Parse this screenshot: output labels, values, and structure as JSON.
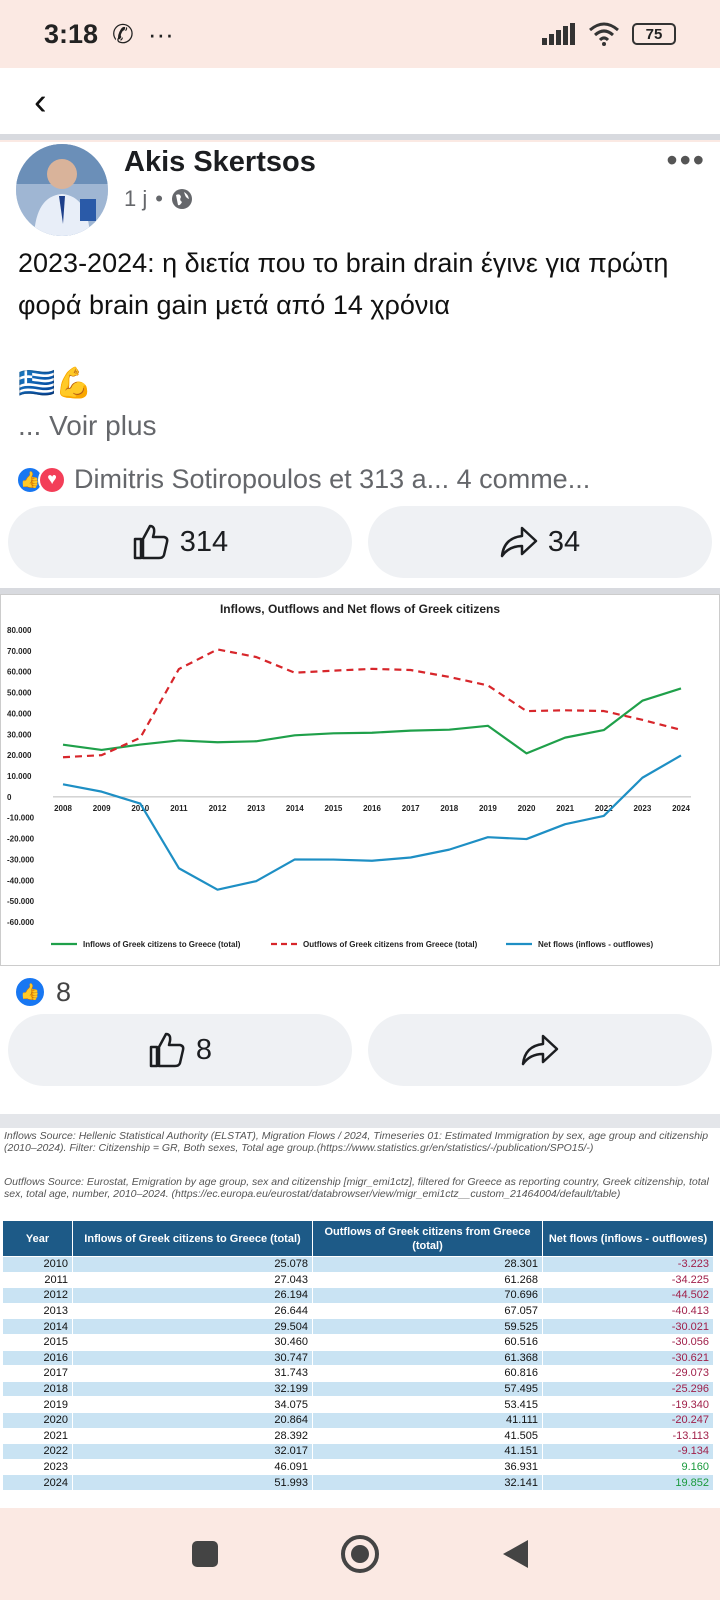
{
  "status": {
    "time": "3:18",
    "battery": "75"
  },
  "post": {
    "author": "Akis Skertsos",
    "time_ago": "1 j",
    "text": "2023-2024: η διετία που το brain drain έγινε για πρώτη φορά brain gain μετά από 14 χρόνια",
    "emoji": "🇬🇷💪",
    "see_more": "... Voir plus",
    "reactions_text": "Dimitris Sotiropoulos et 313 a... 4 comme...",
    "like_count": "314",
    "share_count": "34"
  },
  "comment": {
    "like_count": "8",
    "like_button_count": "8"
  },
  "chart_data": {
    "type": "line",
    "title": "Inflows, Outflows and Net flows of Greek citizens",
    "x": [
      "2008",
      "2009",
      "2010",
      "2011",
      "2012",
      "2013",
      "2014",
      "2015",
      "2016",
      "2017",
      "2018",
      "2019",
      "2020",
      "2021",
      "2022",
      "2023",
      "2024"
    ],
    "ylim": [
      -60000,
      80000
    ],
    "yticks": [
      "80.000",
      "70.000",
      "60.000",
      "50.000",
      "40.000",
      "30.000",
      "20.000",
      "10.000",
      "0",
      "-10.000",
      "-20.000",
      "-30.000",
      "-40.000",
      "-50.000",
      "-60.000"
    ],
    "legend_position": "bottom",
    "series": [
      {
        "name": "Inflows of Greek citizens to Greece (total)",
        "color": "#1fa04a",
        "dash": "solid",
        "values": [
          25000,
          22500,
          25078,
          27043,
          26194,
          26644,
          29504,
          30460,
          30747,
          31743,
          32199,
          34075,
          20864,
          28392,
          32017,
          46091,
          51993
        ]
      },
      {
        "name": "Outflows of Greek citizens from Greece (total)",
        "color": "#d7262b",
        "dash": "dashed",
        "values": [
          19000,
          20000,
          28301,
          61268,
          70696,
          67057,
          59525,
          60516,
          61368,
          60816,
          57495,
          53415,
          41111,
          41505,
          41151,
          36931,
          32141
        ]
      },
      {
        "name": "Net flows (inflows - outflowes)",
        "color": "#1e8fc4",
        "dash": "solid",
        "values": [
          6000,
          2500,
          -3223,
          -34225,
          -44502,
          -40413,
          -30021,
          -30056,
          -30621,
          -29073,
          -25296,
          -19340,
          -20247,
          -13113,
          -9134,
          9160,
          19852
        ]
      }
    ]
  },
  "sources": {
    "inflows": "Inflows Source: Hellenic Statistical Authority (ELSTAT), Migration Flows / 2024, Timeseries 01: Estimated Immigration by sex, age group and citizenship (2010–2024). Filter: Citizenship = GR, Both sexes, Total age group.(https://www.statistics.gr/en/statistics/-/publication/SPO15/-)",
    "outflows": "Outflows Source: Eurostat, Emigration by age group, sex and citizenship [migr_emi1ctz], filtered for Greece as reporting country, Greek citizenship, total sex, total age, number, 2010–2024. (https://ec.europa.eu/eurostat/databrowser/view/migr_emi1ctz__custom_21464004/default/table)"
  },
  "table": {
    "headers": [
      "Year",
      "Inflows of Greek citizens to Greece (total)",
      "Outflows of Greek citizens from Greece (total)",
      "Net flows (inflows - outflowes)"
    ],
    "rows": [
      [
        "2010",
        "25.078",
        "28.301",
        "-3.223"
      ],
      [
        "2011",
        "27.043",
        "61.268",
        "-34.225"
      ],
      [
        "2012",
        "26.194",
        "70.696",
        "-44.502"
      ],
      [
        "2013",
        "26.644",
        "67.057",
        "-40.413"
      ],
      [
        "2014",
        "29.504",
        "59.525",
        "-30.021"
      ],
      [
        "2015",
        "30.460",
        "60.516",
        "-30.056"
      ],
      [
        "2016",
        "30.747",
        "61.368",
        "-30.621"
      ],
      [
        "2017",
        "31.743",
        "60.816",
        "-29.073"
      ],
      [
        "2018",
        "32.199",
        "57.495",
        "-25.296"
      ],
      [
        "2019",
        "34.075",
        "53.415",
        "-19.340"
      ],
      [
        "2020",
        "20.864",
        "41.111",
        "-20.247"
      ],
      [
        "2021",
        "28.392",
        "41.505",
        "-13.113"
      ],
      [
        "2022",
        "32.017",
        "41.151",
        "-9.134"
      ],
      [
        "2023",
        "46.091",
        "36.931",
        "9.160"
      ],
      [
        "2024",
        "51.993",
        "32.141",
        "19.852"
      ]
    ]
  }
}
